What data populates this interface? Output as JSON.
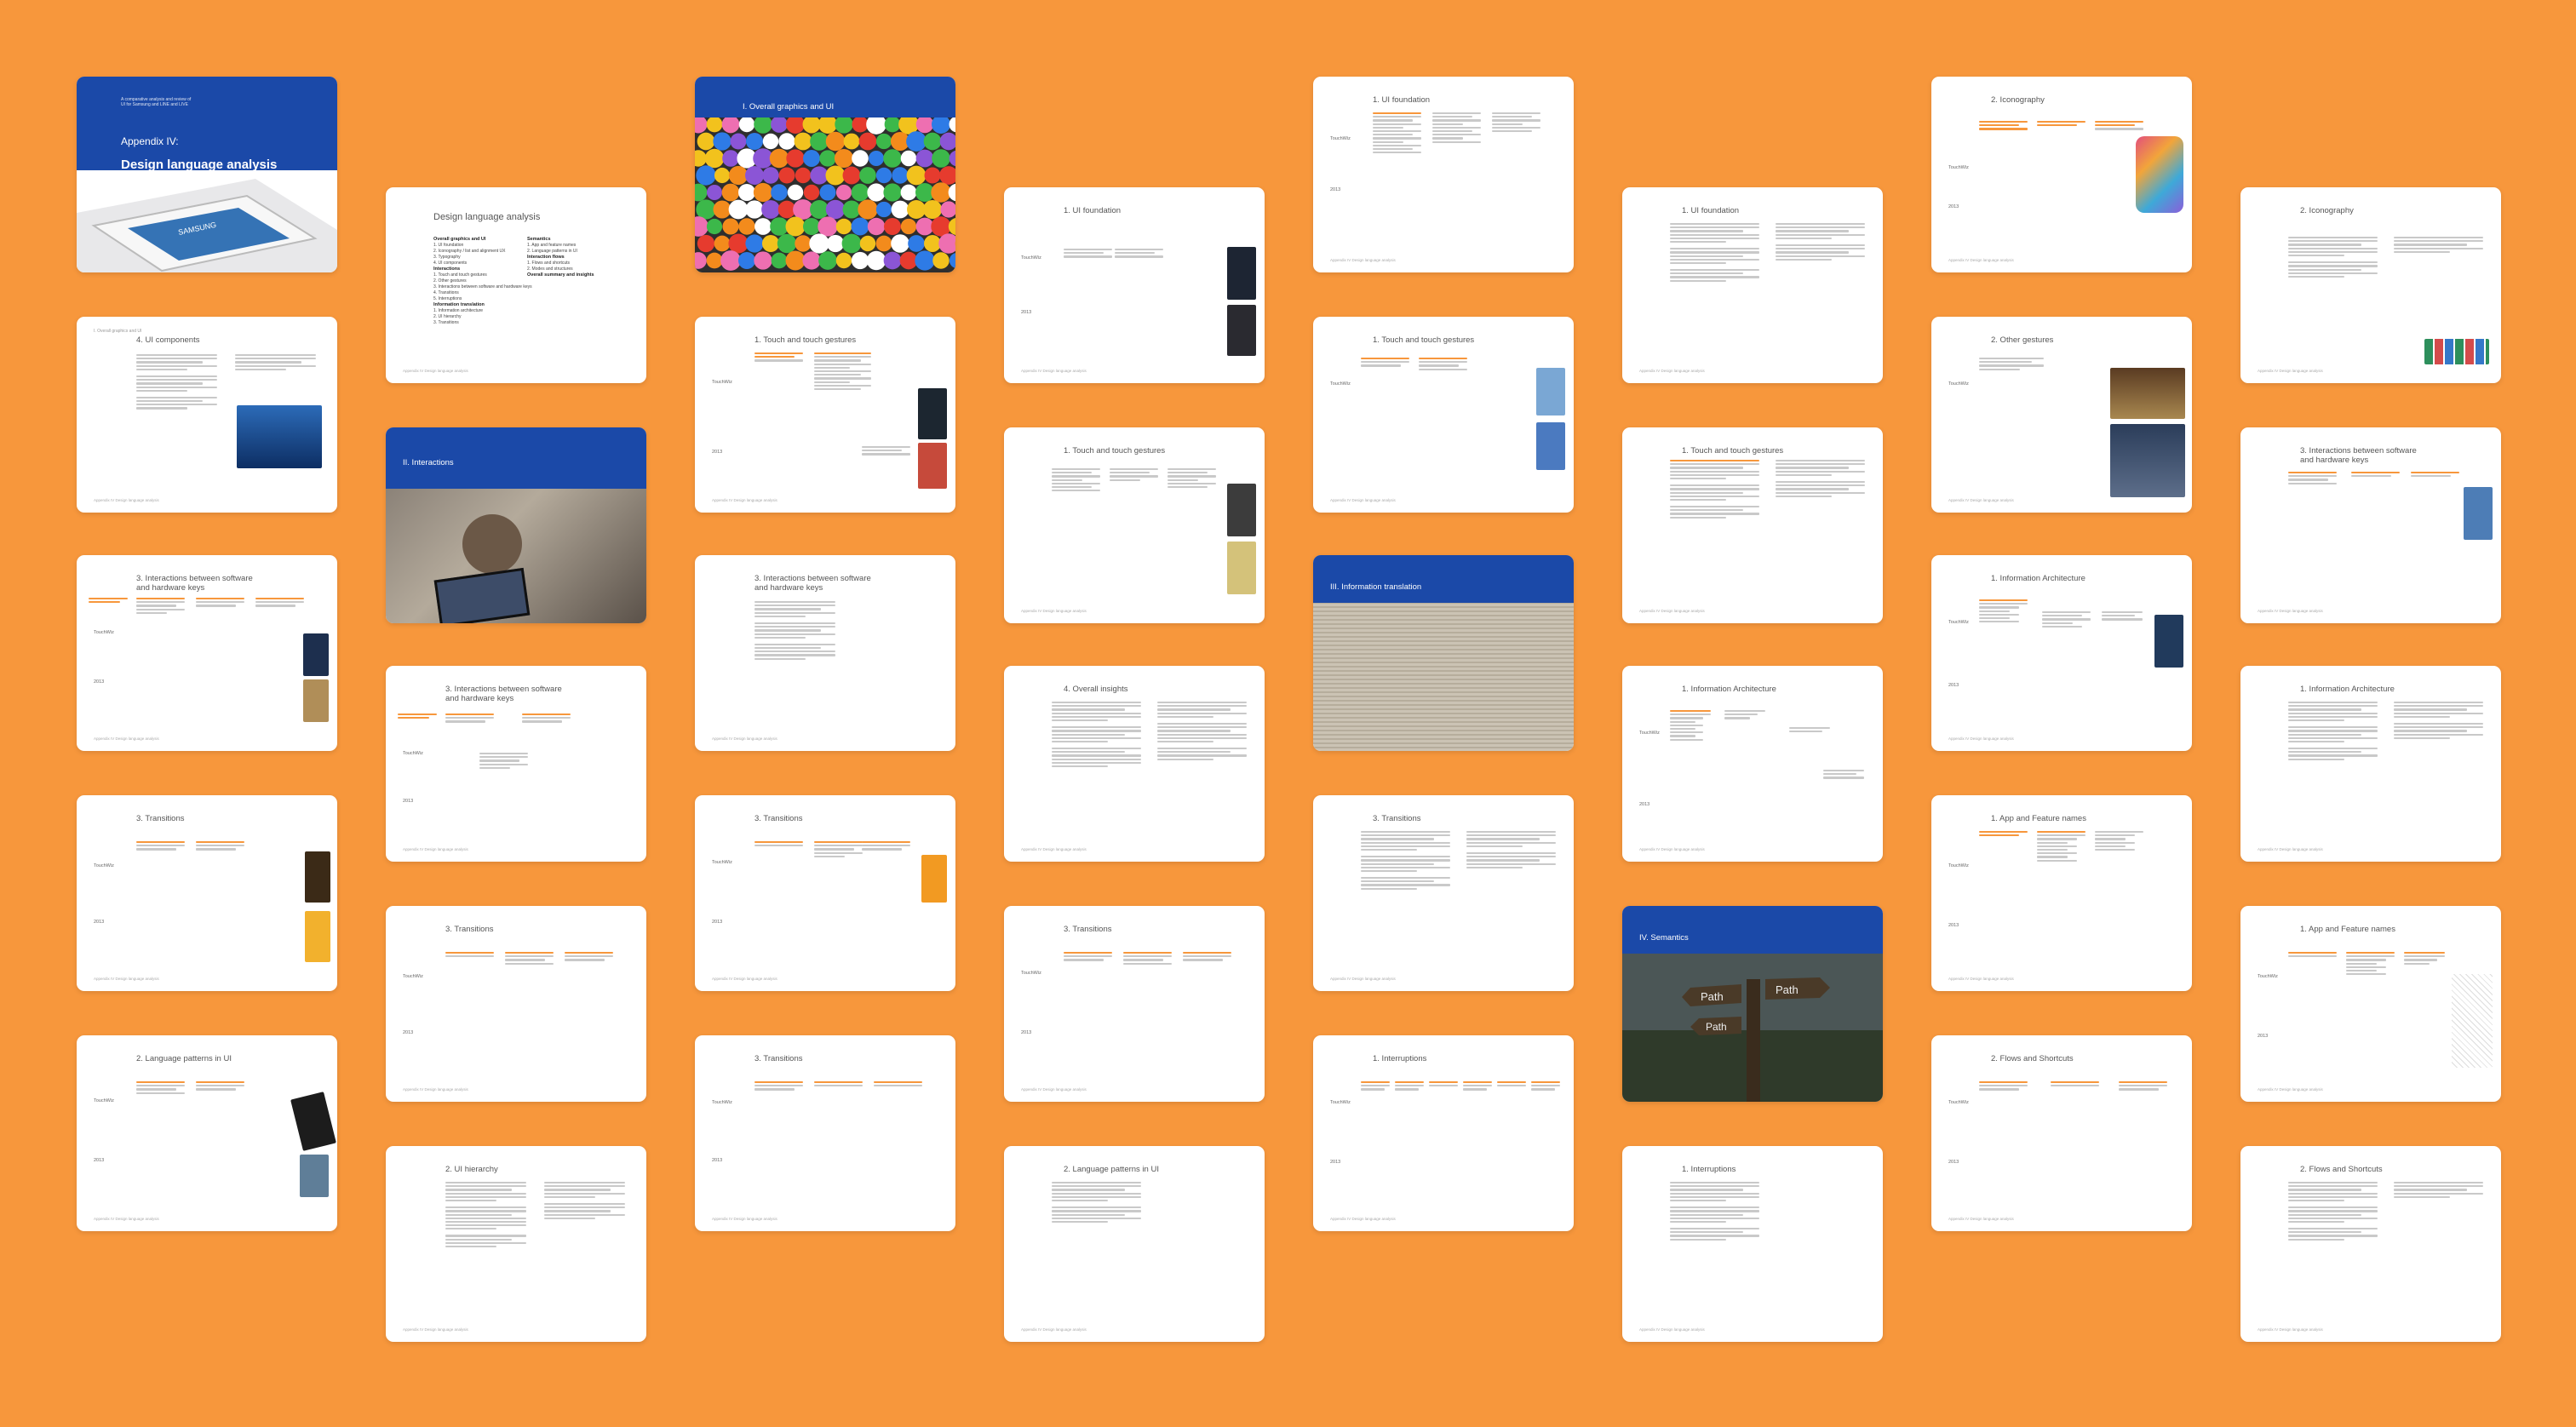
{
  "cover": {
    "small_intro": "A comparative analysis and review of\nUI for Samsung and LINE and LIVE",
    "title_line1": "Appendix IV:",
    "title_line2": "Design language analysis"
  },
  "toc": {
    "title": "Design language analysis",
    "col1": [
      "Overall graphics and UI",
      "1. UI foundation",
      "2. Iconography / list and alignment UX",
      "3. Typography",
      "4. UI components",
      "Interactions",
      "1. Touch and touch gestures",
      "2. Other gestures",
      "3. Interactions between software and hardware keys",
      "4. Transitions",
      "5. Interruptions",
      "Information translation",
      "1. Information architecture",
      "2. UI hierarchy",
      "3. Transitions"
    ],
    "col2": [
      "Semantics",
      "1. App and feature names",
      "2. Language patterns in UI",
      "Interaction flows",
      "1. Flows and shortcuts",
      "2. Modes and structures",
      "Overall summary and insights"
    ]
  },
  "sections": {
    "s1": "I. Overall graphics and UI",
    "s2": "II. Interactions",
    "s3": "III. Information translation",
    "s4": "IV. Semantics"
  },
  "row_labels": {
    "a": "TouchWiz",
    "b": "2013"
  },
  "footer": "Appendix IV\nDesign language analysis",
  "pages": [
    {
      "title": "4. UI components"
    },
    {
      "title": "3. Interactions between software\nand hardware keys"
    },
    {
      "title": "3. Transitions"
    },
    {
      "title": "2. Language patterns in UI"
    },
    {
      "title": "3. Interactions between software\nand hardware keys"
    },
    {
      "title": "3. Transitions"
    },
    {
      "title": "2. UI hierarchy"
    },
    {
      "title": "1. Touch and touch gestures"
    },
    {
      "title": "3. Interactions between software\nand hardware keys"
    },
    {
      "title": "3. Transitions"
    },
    {
      "title": "3. Transitions"
    },
    {
      "title": "1. UI foundation"
    },
    {
      "title": "1. Touch and touch gestures"
    },
    {
      "title": "4. Overall insights"
    },
    {
      "title": "3. Transitions"
    },
    {
      "title": "2. Language patterns in UI"
    },
    {
      "title": "1. UI foundation"
    },
    {
      "title": "1. Touch and touch gestures"
    },
    {
      "title": "3. Transitions"
    },
    {
      "title": "1. Interruptions"
    },
    {
      "title": "1. UI foundation"
    },
    {
      "title": "1. Touch and touch gestures"
    },
    {
      "title": "1. Information Architecture"
    },
    {
      "title": "1. Interruptions"
    },
    {
      "title": "2. Iconography"
    },
    {
      "title": "2. Other gestures"
    },
    {
      "title": "1. Information Architecture"
    },
    {
      "title": "1. App and Feature names"
    },
    {
      "title": "2. Flows and Shortcuts"
    },
    {
      "title": "2. Iconography"
    },
    {
      "title": "3. Interactions between software\nand hardware keys"
    },
    {
      "title": "1. Information Architecture"
    },
    {
      "title": "1. App and Feature names"
    },
    {
      "title": "2. Flows and Shortcuts"
    }
  ],
  "photo_labels": {
    "path": "Path"
  },
  "colors": {
    "background": "#F7973C",
    "header": "#1B49A8",
    "accent": "#F7973C"
  }
}
